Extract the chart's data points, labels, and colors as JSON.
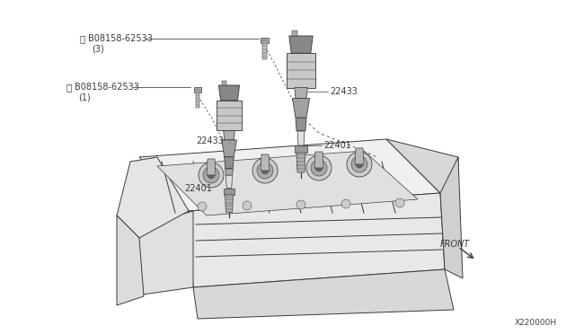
{
  "bg_color": "#ffffff",
  "line_color": "#3a3a3a",
  "label_color": "#2a2a2a",
  "ref_code": "X220000H",
  "bolt_top_label": "B08158-62533",
  "bolt_top_qty": "(3)",
  "bolt_mid_label": "B08158-62533",
  "bolt_mid_qty": "(1)",
  "coil_label": "22433",
  "plug_label": "22401",
  "front_label": "FRONT",
  "lw": 0.7
}
